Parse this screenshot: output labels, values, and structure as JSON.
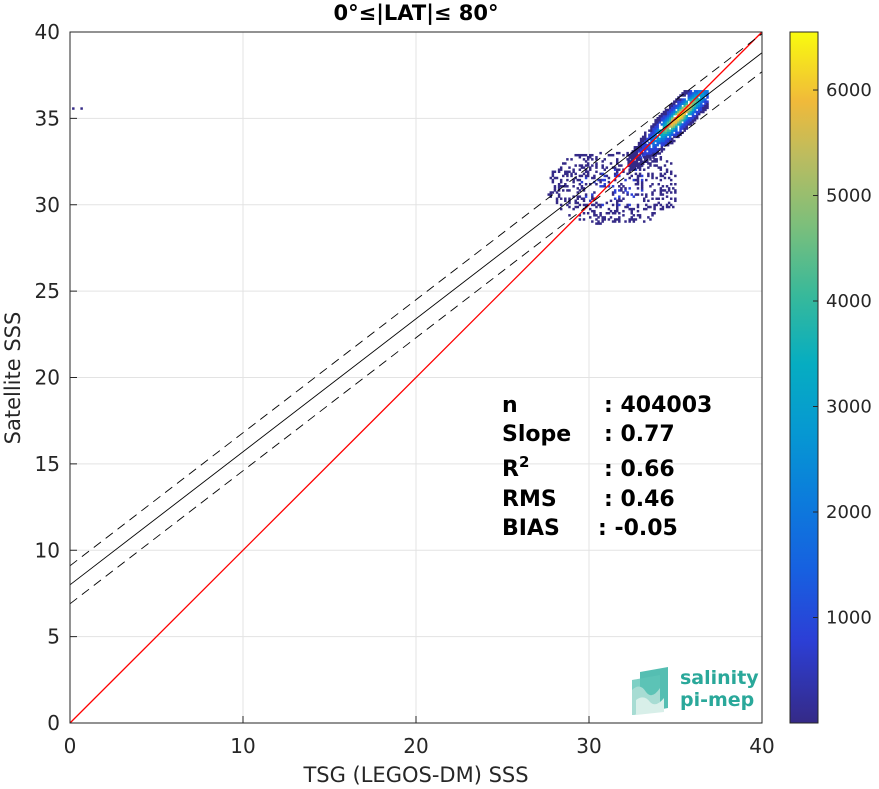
{
  "chart_data": {
    "type": "heatmap",
    "title": "0°≤|LAT|≤ 80°",
    "xlabel": "TSG (LEGOS-DM) SSS",
    "ylabel": "Satellite SSS",
    "xlim": [
      0,
      40
    ],
    "ylim": [
      0,
      40
    ],
    "xticks": [
      "0",
      "10",
      "20",
      "30",
      "40"
    ],
    "yticks": [
      "0",
      "5",
      "10",
      "15",
      "20",
      "25",
      "30",
      "35",
      "40"
    ],
    "grid": true,
    "colorbar": {
      "range": [
        0,
        6550
      ],
      "ticks": [
        "1000",
        "2000",
        "3000",
        "4000",
        "5000",
        "6000"
      ],
      "tick_values": [
        1000,
        2000,
        3000,
        4000,
        5000,
        6000
      ],
      "colormap": "parula"
    },
    "density_clusters": [
      {
        "x_range": [
          31.5,
          36.8
        ],
        "y_range": [
          31.6,
          36.6
        ],
        "peak_x": 35.2,
        "peak_y": 35.1,
        "peak_count": 6400
      },
      {
        "x_range": [
          27.0,
          35.0
        ],
        "y_range": [
          28.5,
          33.0
        ],
        "peak_x": 31.5,
        "peak_y": 31.0,
        "peak_count": 300
      },
      {
        "x_range": [
          0.0,
          0.7
        ],
        "y_range": [
          35.4,
          35.6
        ],
        "peak_x": 0.3,
        "peak_y": 35.5,
        "peak_count": 100
      }
    ],
    "lines": [
      {
        "name": "1:1",
        "color": "#ff0000",
        "style": "solid",
        "x": [
          0,
          40
        ],
        "y": [
          0,
          40
        ]
      },
      {
        "name": "fit",
        "color": "#000000",
        "style": "solid",
        "x": [
          0,
          40
        ],
        "y": [
          8.0,
          38.8
        ]
      },
      {
        "name": "fit+std",
        "color": "#000000",
        "style": "dashed",
        "x": [
          0,
          40
        ],
        "y": [
          9.1,
          39.9
        ]
      },
      {
        "name": "fit-std",
        "color": "#000000",
        "style": "dashed",
        "x": [
          0,
          40
        ],
        "y": [
          6.9,
          37.7
        ]
      }
    ],
    "stats": [
      {
        "label": "n",
        "value": ": 404003"
      },
      {
        "label": "Slope",
        "value": ": 0.77"
      },
      {
        "label": "R",
        "sup": "2",
        "value": ": 0.66"
      },
      {
        "label": "RMS",
        "value": ": 0.46"
      },
      {
        "label": "BIAS",
        "value": ": -0.05"
      }
    ]
  },
  "logo": {
    "line1": "salinity",
    "line2": "pi-mep"
  }
}
